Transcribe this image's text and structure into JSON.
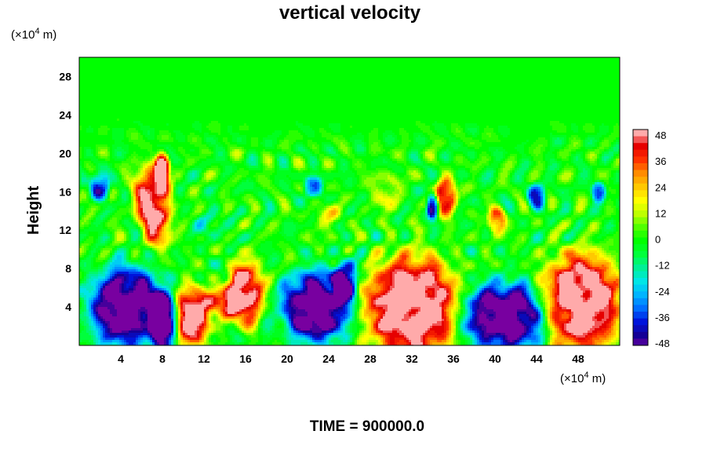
{
  "chart_data": {
    "type": "heatmap",
    "title": "vertical velocity",
    "ylabel": "Height",
    "y_unit_prefix": "(×10",
    "y_unit_exp": "4",
    "y_unit_suffix": " m)",
    "x_unit_prefix": "(×10",
    "x_unit_exp": "4",
    "x_unit_suffix": " m)",
    "xlim": [
      0,
      52
    ],
    "ylim": [
      0,
      30
    ],
    "x_ticks": [
      "4",
      "8",
      "12",
      "16",
      "20",
      "24",
      "28",
      "32",
      "36",
      "40",
      "44",
      "48"
    ],
    "y_ticks": [
      "4",
      "8",
      "12",
      "16",
      "20",
      "24",
      "28"
    ],
    "colorbar": {
      "range": [
        -48,
        48
      ],
      "ticks": [
        "48",
        "36",
        "24",
        "12",
        "0",
        "-12",
        "-24",
        "-36",
        "-48"
      ]
    },
    "footer": "TIME = 900000.0",
    "features": [
      {
        "x": 4.5,
        "y": 4.0,
        "rx": 3.2,
        "ry": 3.8,
        "value": -52
      },
      {
        "x": 8.2,
        "y": 2.5,
        "rx": 1.2,
        "ry": 3.0,
        "value": -50
      },
      {
        "x": 10.8,
        "y": 3.0,
        "rx": 1.6,
        "ry": 2.8,
        "value": 52
      },
      {
        "x": 16.0,
        "y": 5.5,
        "rx": 1.5,
        "ry": 3.0,
        "value": 50
      },
      {
        "x": 13.8,
        "y": 4.5,
        "rx": 1.4,
        "ry": 1.6,
        "value": 34
      },
      {
        "x": 22.8,
        "y": 4.0,
        "rx": 3.0,
        "ry": 3.4,
        "value": -52
      },
      {
        "x": 25.6,
        "y": 6.8,
        "rx": 1.0,
        "ry": 2.0,
        "value": -40
      },
      {
        "x": 32.0,
        "y": 4.0,
        "rx": 4.0,
        "ry": 4.8,
        "value": 54
      },
      {
        "x": 41.0,
        "y": 3.0,
        "rx": 3.8,
        "ry": 3.2,
        "value": -52
      },
      {
        "x": 48.3,
        "y": 4.5,
        "rx": 3.5,
        "ry": 4.6,
        "value": 54
      },
      {
        "x": 7.0,
        "y": 15.5,
        "rx": 1.6,
        "ry": 3.0,
        "value": 46
      },
      {
        "x": 8.0,
        "y": 18.5,
        "rx": 0.6,
        "ry": 1.5,
        "value": 40
      },
      {
        "x": 7.6,
        "y": 11.8,
        "rx": 1.2,
        "ry": 1.8,
        "value": 26
      },
      {
        "x": 35.3,
        "y": 15.5,
        "rx": 0.9,
        "ry": 1.8,
        "value": 42
      },
      {
        "x": 34.0,
        "y": 14.5,
        "rx": 0.5,
        "ry": 1.2,
        "value": -40
      },
      {
        "x": 40.2,
        "y": 13.0,
        "rx": 0.8,
        "ry": 1.3,
        "value": 30
      },
      {
        "x": 2.0,
        "y": 16.5,
        "rx": 0.8,
        "ry": 1.4,
        "value": -34
      },
      {
        "x": 22.5,
        "y": 16.5,
        "rx": 0.8,
        "ry": 1.0,
        "value": -30
      },
      {
        "x": 44.0,
        "y": 15.5,
        "rx": 0.8,
        "ry": 1.2,
        "value": -32
      },
      {
        "x": 50.0,
        "y": 16.0,
        "rx": 0.6,
        "ry": 1.0,
        "value": -30
      },
      {
        "x": 24.0,
        "y": 13.5,
        "rx": 1.0,
        "ry": 1.5,
        "value": 14
      },
      {
        "x": 29.5,
        "y": 16.0,
        "rx": 1.4,
        "ry": 2.0,
        "value": 12
      },
      {
        "x": 12.5,
        "y": 12.5,
        "rx": 1.2,
        "ry": 1.0,
        "value": -14
      }
    ]
  }
}
